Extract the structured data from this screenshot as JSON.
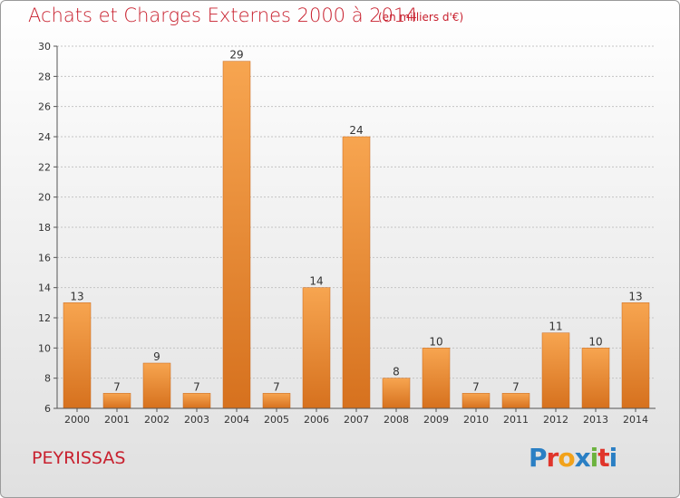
{
  "header": {
    "title": "Achats et Charges Externes 2000 à 2014",
    "unit": "(en milliers d'€)"
  },
  "footer": {
    "commune": "PEYRISSAS",
    "brand": "Proxiti"
  },
  "colors": {
    "title": "#c8202e",
    "bar_light": "#f7a550",
    "bar_dark": "#d6711e"
  },
  "chart_data": {
    "type": "bar",
    "title": "Achats et Charges Externes 2000 à 2014",
    "subtitle": "(en milliers d'€)",
    "categories": [
      "2000",
      "2001",
      "2002",
      "2003",
      "2004",
      "2005",
      "2006",
      "2007",
      "2008",
      "2009",
      "2010",
      "2011",
      "2012",
      "2013",
      "2014"
    ],
    "values": [
      13,
      7,
      9,
      7,
      29,
      7,
      14,
      24,
      8,
      10,
      7,
      7,
      11,
      10,
      13
    ],
    "ylim": [
      6,
      30
    ],
    "yticks": [
      6,
      8,
      10,
      12,
      14,
      16,
      18,
      20,
      22,
      24,
      26,
      28,
      30
    ],
    "grid": true,
    "xlabel": "",
    "ylabel": ""
  }
}
